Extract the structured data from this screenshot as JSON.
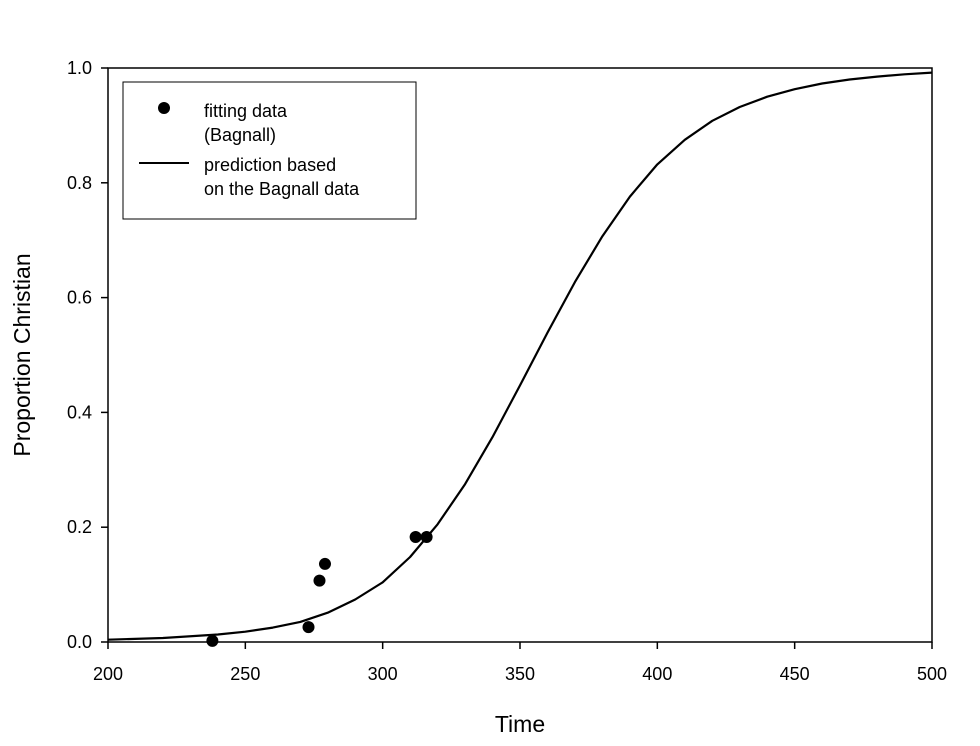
{
  "chart_data": {
    "type": "scatter",
    "xlabel": "Time",
    "ylabel": "Proportion Christian",
    "xlim": [
      200,
      500
    ],
    "ylim": [
      0.0,
      1.0
    ],
    "x_ticks": [
      "200",
      "250",
      "300",
      "350",
      "400",
      "450",
      "500"
    ],
    "y_ticks": [
      "0.0",
      "0.2",
      "0.4",
      "0.6",
      "0.8",
      "1.0"
    ],
    "grid": false,
    "legend_position": "top-left",
    "series": [
      {
        "name": "fitting data (Bagnall)",
        "legend_lines": [
          "fitting data",
          "(Bagnall)"
        ],
        "type": "scatter",
        "marker": "circle",
        "color": "#000000",
        "x": [
          238,
          273,
          277,
          279,
          312,
          316
        ],
        "y": [
          0.002,
          0.026,
          0.107,
          0.136,
          0.183,
          0.183
        ]
      },
      {
        "name": "prediction based on the Bagnall data",
        "legend_lines": [
          "prediction based",
          "on the Bagnall data"
        ],
        "type": "line",
        "color": "#000000",
        "x": [
          200,
          220,
          240,
          250,
          260,
          270,
          280,
          290,
          300,
          310,
          320,
          330,
          340,
          350,
          360,
          370,
          380,
          390,
          400,
          410,
          420,
          430,
          440,
          450,
          460,
          470,
          480,
          490,
          500
        ],
        "y": [
          0.004,
          0.007,
          0.013,
          0.018,
          0.025,
          0.035,
          0.051,
          0.074,
          0.104,
          0.148,
          0.205,
          0.275,
          0.357,
          0.447,
          0.539,
          0.627,
          0.707,
          0.776,
          0.832,
          0.875,
          0.908,
          0.932,
          0.95,
          0.963,
          0.973,
          0.98,
          0.985,
          0.989,
          0.992
        ]
      }
    ]
  }
}
